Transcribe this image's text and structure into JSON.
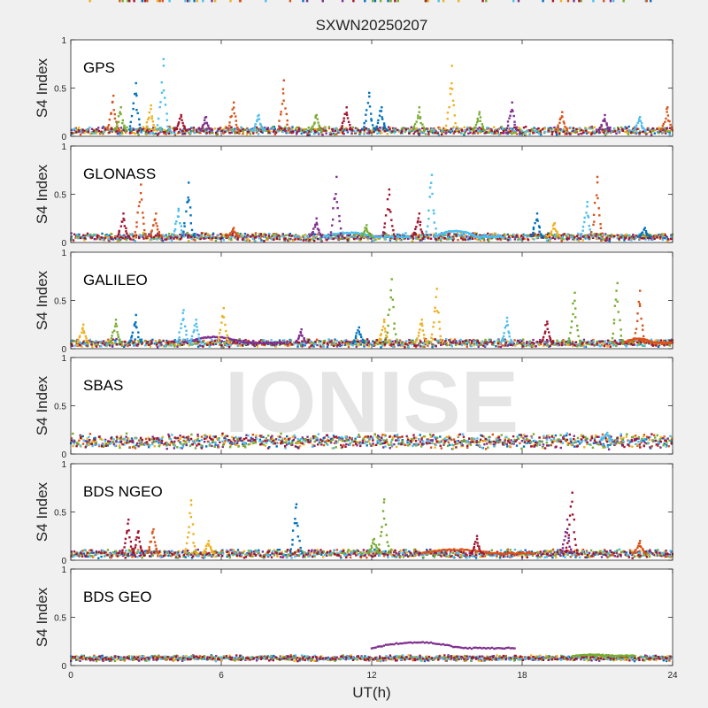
{
  "chart_data": {
    "type": "scatter",
    "title": "SXWN20250207",
    "xlabel": "UT(h)",
    "ylabel": "S4 Index",
    "xlim": [
      0,
      24
    ],
    "ylim": [
      0,
      1
    ],
    "xticks": [
      0,
      6,
      12,
      18,
      24
    ],
    "xtick_labels": [
      "0",
      "6",
      "12",
      "18",
      "24"
    ],
    "yticks": [
      0,
      0.5,
      1
    ],
    "ytick_labels": [
      "0",
      "0.5",
      "1"
    ],
    "grid": false,
    "watermark": "IONISE",
    "colors": [
      "#0072bd",
      "#d95319",
      "#edb120",
      "#7e2f8e",
      "#77ac30",
      "#4dbeee",
      "#a2142f"
    ],
    "panels": [
      {
        "label": "GPS",
        "baseline": 0.06,
        "noise": 0.03,
        "spikes": [
          {
            "x": 1.7,
            "peak": 0.42,
            "c": 1
          },
          {
            "x": 2.0,
            "peak": 0.3,
            "c": 4
          },
          {
            "x": 2.6,
            "peak": 0.55,
            "c": 0
          },
          {
            "x": 3.2,
            "peak": 0.32,
            "c": 2
          },
          {
            "x": 3.7,
            "peak": 0.8,
            "c": 5
          },
          {
            "x": 4.4,
            "peak": 0.22,
            "c": 6
          },
          {
            "x": 5.4,
            "peak": 0.2,
            "c": 3
          },
          {
            "x": 6.5,
            "peak": 0.35,
            "c": 1
          },
          {
            "x": 7.5,
            "peak": 0.22,
            "c": 5
          },
          {
            "x": 8.5,
            "peak": 0.58,
            "c": 1
          },
          {
            "x": 9.8,
            "peak": 0.22,
            "c": 4
          },
          {
            "x": 11.0,
            "peak": 0.3,
            "c": 6
          },
          {
            "x": 11.9,
            "peak": 0.45,
            "c": 0
          },
          {
            "x": 12.4,
            "peak": 0.3,
            "c": 0
          },
          {
            "x": 13.9,
            "peak": 0.3,
            "c": 4
          },
          {
            "x": 15.2,
            "peak": 0.73,
            "c": 2
          },
          {
            "x": 16.3,
            "peak": 0.25,
            "c": 4
          },
          {
            "x": 17.6,
            "peak": 0.35,
            "c": 3
          },
          {
            "x": 19.6,
            "peak": 0.25,
            "c": 1
          },
          {
            "x": 21.3,
            "peak": 0.22,
            "c": 3
          },
          {
            "x": 22.7,
            "peak": 0.2,
            "c": 5
          },
          {
            "x": 23.8,
            "peak": 0.3,
            "c": 1
          }
        ],
        "arcs": []
      },
      {
        "label": "GLONASS",
        "baseline": 0.06,
        "noise": 0.03,
        "spikes": [
          {
            "x": 2.1,
            "peak": 0.3,
            "c": 6
          },
          {
            "x": 2.8,
            "peak": 0.6,
            "c": 1
          },
          {
            "x": 3.4,
            "peak": 0.3,
            "c": 1
          },
          {
            "x": 4.3,
            "peak": 0.35,
            "c": 5
          },
          {
            "x": 4.7,
            "peak": 0.62,
            "c": 0
          },
          {
            "x": 6.5,
            "peak": 0.15,
            "c": 1
          },
          {
            "x": 9.8,
            "peak": 0.25,
            "c": 3
          },
          {
            "x": 10.6,
            "peak": 0.68,
            "c": 3
          },
          {
            "x": 11.8,
            "peak": 0.18,
            "c": 4
          },
          {
            "x": 12.7,
            "peak": 0.55,
            "c": 6
          },
          {
            "x": 13.9,
            "peak": 0.3,
            "c": 6
          },
          {
            "x": 14.4,
            "peak": 0.7,
            "c": 5
          },
          {
            "x": 18.6,
            "peak": 0.3,
            "c": 0
          },
          {
            "x": 19.3,
            "peak": 0.2,
            "c": 2
          },
          {
            "x": 20.6,
            "peak": 0.42,
            "c": 5
          },
          {
            "x": 21.0,
            "peak": 0.68,
            "c": 1
          },
          {
            "x": 22.9,
            "peak": 0.15,
            "c": 0
          }
        ],
        "arcs": [
          {
            "x0": 10.0,
            "x1": 13.5,
            "peak": 0.1,
            "c": 5
          },
          {
            "x0": 14.5,
            "x1": 17.2,
            "peak": 0.12,
            "c": 5
          }
        ]
      },
      {
        "label": "GALILEO",
        "baseline": 0.06,
        "noise": 0.03,
        "spikes": [
          {
            "x": 0.5,
            "peak": 0.25,
            "c": 2
          },
          {
            "x": 1.8,
            "peak": 0.3,
            "c": 4
          },
          {
            "x": 2.6,
            "peak": 0.35,
            "c": 0
          },
          {
            "x": 4.5,
            "peak": 0.4,
            "c": 5
          },
          {
            "x": 5.0,
            "peak": 0.3,
            "c": 5
          },
          {
            "x": 6.1,
            "peak": 0.42,
            "c": 2
          },
          {
            "x": 9.2,
            "peak": 0.2,
            "c": 3
          },
          {
            "x": 11.5,
            "peak": 0.22,
            "c": 0
          },
          {
            "x": 12.5,
            "peak": 0.3,
            "c": 2
          },
          {
            "x": 12.8,
            "peak": 0.72,
            "c": 4
          },
          {
            "x": 14.0,
            "peak": 0.3,
            "c": 2
          },
          {
            "x": 14.6,
            "peak": 0.62,
            "c": 2
          },
          {
            "x": 17.4,
            "peak": 0.32,
            "c": 5
          },
          {
            "x": 19.0,
            "peak": 0.28,
            "c": 6
          },
          {
            "x": 20.1,
            "peak": 0.58,
            "c": 4
          },
          {
            "x": 21.8,
            "peak": 0.68,
            "c": 4
          },
          {
            "x": 22.7,
            "peak": 0.6,
            "c": 1
          }
        ],
        "arcs": [
          {
            "x0": 4.5,
            "x1": 8.5,
            "peak": 0.12,
            "c": 3
          },
          {
            "x0": 22.0,
            "x1": 24.0,
            "peak": 0.1,
            "c": 1
          }
        ]
      },
      {
        "label": "SBAS",
        "baseline": 0.14,
        "noise": 0.05,
        "spikes": [
          {
            "x": 21.4,
            "peak": 0.22,
            "c": 5
          }
        ],
        "arcs": []
      },
      {
        "label": "BDS NGEO",
        "baseline": 0.07,
        "noise": 0.03,
        "spikes": [
          {
            "x": 2.3,
            "peak": 0.42,
            "c": 6
          },
          {
            "x": 2.7,
            "peak": 0.3,
            "c": 6
          },
          {
            "x": 3.3,
            "peak": 0.32,
            "c": 1
          },
          {
            "x": 4.8,
            "peak": 0.62,
            "c": 2
          },
          {
            "x": 5.5,
            "peak": 0.2,
            "c": 2
          },
          {
            "x": 9.0,
            "peak": 0.58,
            "c": 0
          },
          {
            "x": 12.1,
            "peak": 0.22,
            "c": 4
          },
          {
            "x": 12.5,
            "peak": 0.63,
            "c": 4
          },
          {
            "x": 16.2,
            "peak": 0.25,
            "c": 6
          },
          {
            "x": 19.8,
            "peak": 0.42,
            "c": 3
          },
          {
            "x": 20.0,
            "peak": 0.7,
            "c": 6
          },
          {
            "x": 22.7,
            "peak": 0.2,
            "c": 1
          }
        ],
        "arcs": [
          {
            "x0": 14.0,
            "x1": 18.5,
            "peak": 0.11,
            "c": 1
          }
        ]
      },
      {
        "label": "BDS GEO",
        "baseline": 0.08,
        "noise": 0.012,
        "spikes": [],
        "arcs": [
          {
            "x0": 12.0,
            "x1": 17.7,
            "peak": 0.24,
            "base": 0.18,
            "c": 3
          },
          {
            "x0": 20.0,
            "x1": 22.5,
            "peak": 0.11,
            "base": 0.1,
            "c": 4
          }
        ]
      }
    ]
  }
}
